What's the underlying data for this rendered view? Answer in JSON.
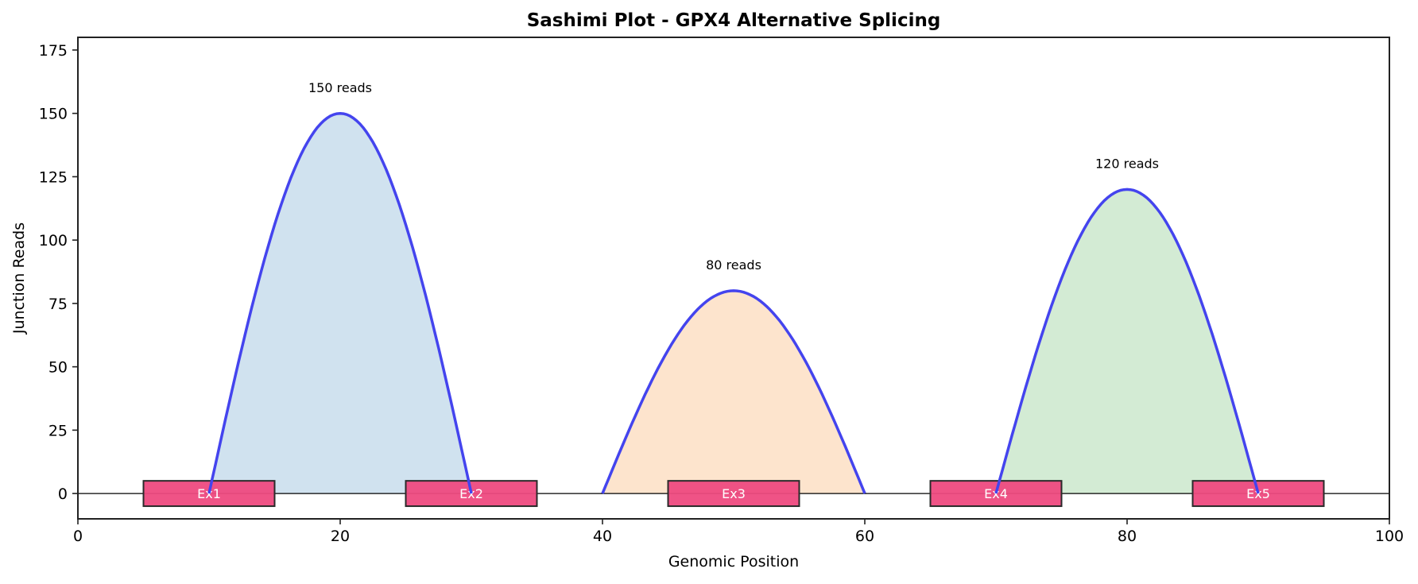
{
  "chart_data": {
    "type": "area",
    "title": "Sashimi Plot - GPX4 Alternative Splicing",
    "xlabel": "Genomic Position",
    "ylabel": "Junction Reads",
    "xlim": [
      0,
      100
    ],
    "ylim": [
      -10,
      180
    ],
    "xticks": [
      0,
      20,
      40,
      60,
      80,
      100
    ],
    "yticks": [
      0,
      25,
      50,
      75,
      100,
      125,
      150,
      175
    ],
    "grid": false,
    "legend": null,
    "baseline_y": 0,
    "junctions": [
      {
        "start": 10,
        "end": 30,
        "reads": 150,
        "label": "150 reads",
        "fill": "#d0e2ef"
      },
      {
        "start": 40,
        "end": 60,
        "reads": 80,
        "label": "80 reads",
        "fill": "#fde4cd"
      },
      {
        "start": 70,
        "end": 90,
        "reads": 120,
        "label": "120 reads",
        "fill": "#d3ebd4"
      }
    ],
    "exons": [
      {
        "name": "Ex1",
        "start": 5,
        "end": 15
      },
      {
        "name": "Ex2",
        "start": 25,
        "end": 35
      },
      {
        "name": "Ex3",
        "start": 45,
        "end": 55
      },
      {
        "name": "Ex4",
        "start": 65,
        "end": 75
      },
      {
        "name": "Ex5",
        "start": 85,
        "end": 95
      }
    ],
    "exon_height": [
      -5,
      5
    ]
  },
  "colors": {
    "arc_line": "#4444ee",
    "exon_fill": "#ee4a80",
    "exon_edge": "#2a2a2a",
    "exon_label": "#ffffff",
    "axis": "#222222"
  }
}
